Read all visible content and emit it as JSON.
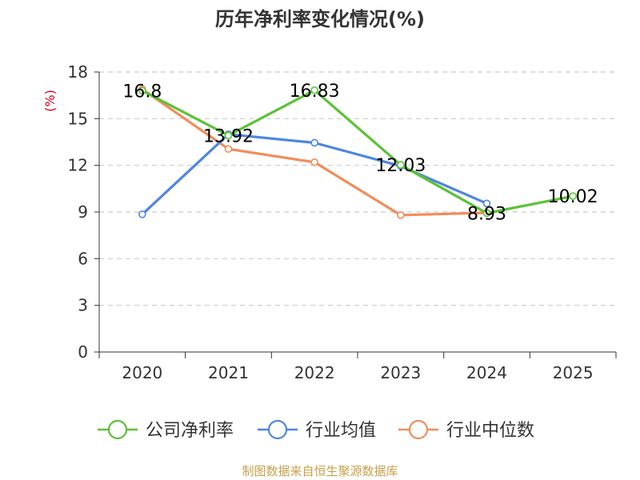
{
  "chart_data": {
    "type": "line",
    "title": "历年净利率变化情况(%)",
    "ylabel": "(%)",
    "xlabel": "",
    "categories": [
      "2020",
      "2021",
      "2022",
      "2023",
      "2024",
      "2025"
    ],
    "ylim": [
      0,
      18
    ],
    "yticks": [
      0,
      3,
      6,
      9,
      12,
      15,
      18
    ],
    "grid": true,
    "legend_position": "bottom",
    "series": [
      {
        "name": "公司净利率",
        "color": "#5cc236",
        "values": [
          16.8,
          13.92,
          16.83,
          12.03,
          8.93,
          10.02
        ],
        "labels": [
          "16.8",
          "13.92",
          "16.83",
          "12.03",
          "8.93",
          "10.02"
        ]
      },
      {
        "name": "行业均值",
        "color": "#4f86e0",
        "values": [
          8.85,
          14.0,
          13.45,
          11.95,
          9.55,
          null
        ]
      },
      {
        "name": "行业中位数",
        "color": "#f28c5a",
        "values": [
          16.9,
          13.05,
          12.2,
          8.8,
          8.95,
          null
        ]
      }
    ]
  },
  "source": "制图数据来自恒生聚源数据库"
}
